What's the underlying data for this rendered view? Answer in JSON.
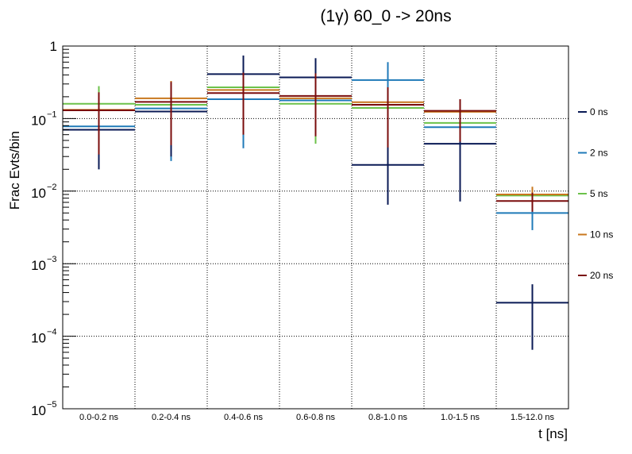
{
  "chart_data": {
    "type": "step-histogram",
    "title": "(1γ) 60_0 -> 20ns",
    "xlabel": "t [ns]",
    "ylabel": "Frac Evts/bin",
    "yscale": "log",
    "ylim": [
      1e-05,
      1
    ],
    "grid": true,
    "legend_position": "right",
    "y_ticks": [
      {
        "base": "1",
        "exp": "",
        "value": 1
      },
      {
        "base": "10",
        "exp": "−1",
        "value": 0.1
      },
      {
        "base": "10",
        "exp": "−2",
        "value": 0.01
      },
      {
        "base": "10",
        "exp": "−3",
        "value": 0.001
      },
      {
        "base": "10",
        "exp": "−4",
        "value": 0.0001
      },
      {
        "base": "10",
        "exp": "−5",
        "value": 1e-05
      }
    ],
    "categories": [
      "0.0-0.2 ns",
      "0.2-0.4 ns",
      "0.4-0.6 ns",
      "0.6-0.8 ns",
      "0.8-1.0 ns",
      "1.0-1.5 ns",
      "1.5-12.0 ns"
    ],
    "series": [
      {
        "name": "2 ns",
        "color": "#1f7ab8",
        "values": [
          0.078,
          0.138,
          0.185,
          0.178,
          0.34,
          0.076,
          0.005
        ],
        "err_low": [
          0.02,
          0.026,
          0.039,
          0.05,
          0.039,
          0.038,
          0.0029
        ],
        "err_high": [
          0.23,
          0.3,
          0.64,
          0.6,
          0.6,
          0.15,
          0.0089
        ]
      },
      {
        "name": "5 ns",
        "color": "#6cc24a",
        "values": [
          0.16,
          0.155,
          0.27,
          0.16,
          0.14,
          0.087,
          0.0087
        ],
        "err_low": [
          0.045,
          0.05,
          0.07,
          0.045,
          0.045,
          0.045,
          0.006
        ],
        "err_high": [
          0.28,
          0.3,
          0.5,
          0.4,
          0.25,
          0.16,
          0.011
        ]
      },
      {
        "name": "10 ns",
        "color": "#c8771e",
        "values": [
          0.132,
          0.19,
          0.248,
          0.19,
          0.168,
          0.124,
          0.009
        ],
        "err_low": [
          0.04,
          0.05,
          0.065,
          0.06,
          0.05,
          0.045,
          0.006
        ],
        "err_high": [
          0.23,
          0.33,
          0.45,
          0.4,
          0.26,
          0.17,
          0.0115
        ]
      },
      {
        "name": "0 ns",
        "color": "#0a1a55",
        "values": [
          0.07,
          0.125,
          0.41,
          0.37,
          0.023,
          0.045,
          0.00029
        ],
        "err_low": [
          0.02,
          0.03,
          0.1,
          0.09,
          0.0065,
          0.0072,
          6.5e-05
        ],
        "err_high": [
          0.18,
          0.3,
          0.74,
          0.68,
          0.042,
          0.085,
          0.00052
        ]
      },
      {
        "name": "20 ns",
        "color": "#7a0c0c",
        "values": [
          0.13,
          0.17,
          0.225,
          0.205,
          0.155,
          0.128,
          0.0073
        ],
        "err_low": [
          0.032,
          0.043,
          0.06,
          0.057,
          0.04,
          0.048,
          0.0052
        ],
        "err_high": [
          0.23,
          0.32,
          0.43,
          0.42,
          0.27,
          0.185,
          0.0095
        ]
      }
    ],
    "legend_order": [
      "0 ns",
      "2 ns",
      "5 ns",
      "10 ns",
      "20 ns"
    ]
  }
}
